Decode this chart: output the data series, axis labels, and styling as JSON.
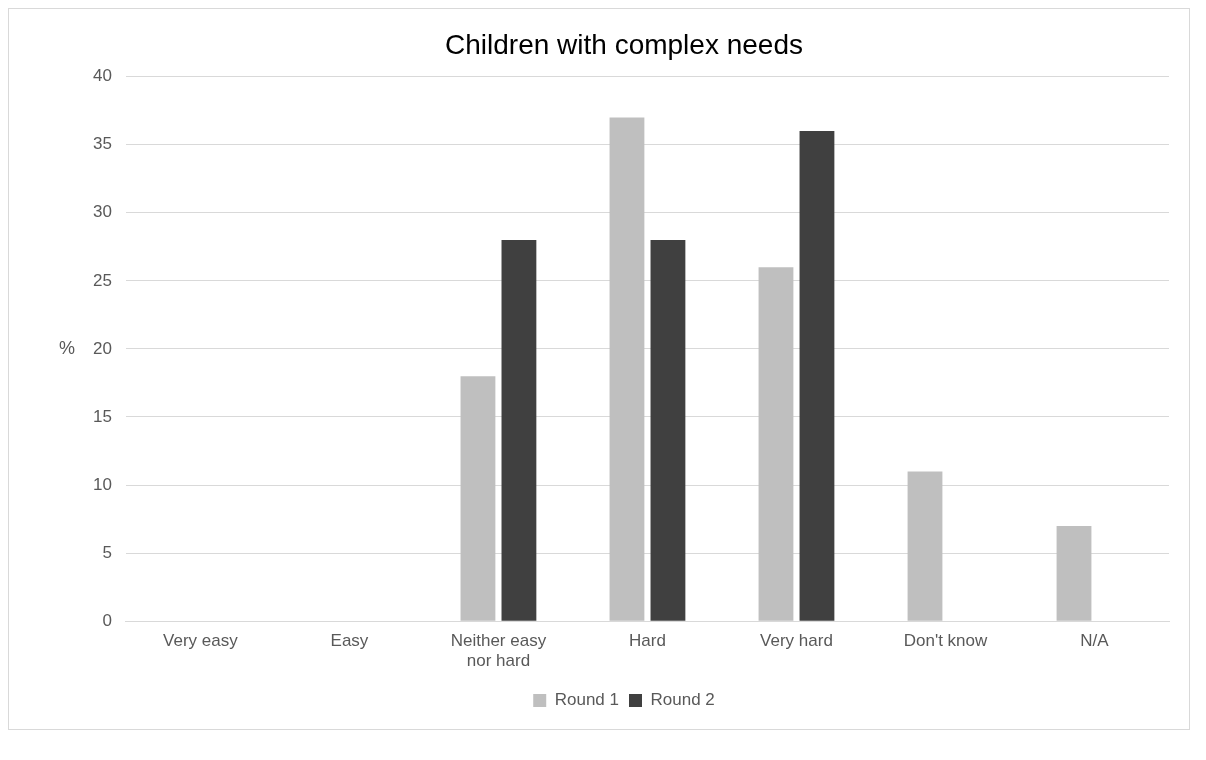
{
  "chart_data": {
    "type": "bar",
    "title": "Children with complex needs",
    "ylabel": "%",
    "categories": [
      "Very easy",
      "Easy",
      "Neither easy nor hard",
      "Hard",
      "Very hard",
      "Don't know",
      "N/A"
    ],
    "series": [
      {
        "name": "Round 1",
        "color": "#bfbfbf",
        "values": [
          0,
          0,
          18,
          37,
          26,
          11,
          7
        ]
      },
      {
        "name": "Round 2",
        "color": "#404040",
        "values": [
          0,
          0,
          28,
          28,
          36,
          0,
          0
        ]
      }
    ],
    "ylim": [
      0,
      40
    ],
    "yticks": [
      0,
      5,
      10,
      15,
      20,
      25,
      30,
      35,
      40
    ],
    "grid": "y",
    "legend": "bottom"
  }
}
